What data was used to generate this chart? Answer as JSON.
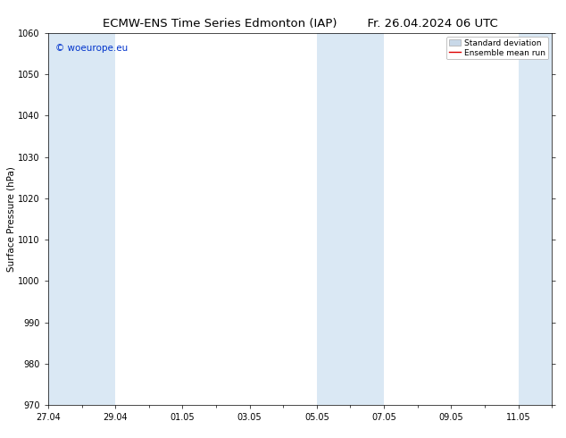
{
  "title_left": "ECMW-ENS Time Series Edmonton (IAP)",
  "title_right": "Fr. 26.04.2024 06 UTC",
  "ylabel": "Surface Pressure (hPa)",
  "ylim": [
    970,
    1060
  ],
  "yticks": [
    970,
    980,
    990,
    1000,
    1010,
    1020,
    1030,
    1040,
    1050,
    1060
  ],
  "xlim": [
    0,
    15
  ],
  "xtick_labels": [
    "27.04",
    "29.04",
    "01.05",
    "03.05",
    "05.05",
    "07.05",
    "09.05",
    "11.05"
  ],
  "xtick_positions": [
    0,
    2,
    4,
    6,
    8,
    10,
    12,
    14
  ],
  "shade_bands": [
    {
      "start": 0.0,
      "end": 1.0
    },
    {
      "start": 1.0,
      "end": 2.0
    },
    {
      "start": 8.0,
      "end": 9.0
    },
    {
      "start": 9.0,
      "end": 10.0
    },
    {
      "start": 14.0,
      "end": 15.0
    }
  ],
  "shade_color": "#dae8f4",
  "watermark": "© woeurope.eu",
  "watermark_color": "#0033cc",
  "legend_std_label": "Standard deviation",
  "legend_mean_label": "Ensemble mean run",
  "legend_std_color": "#c8d8e8",
  "legend_mean_color": "#dd0000",
  "bg_color": "#ffffff",
  "plot_bg_color": "#ffffff",
  "title_fontsize": 9.5,
  "ylabel_fontsize": 7.5,
  "tick_fontsize": 7,
  "watermark_fontsize": 7.5,
  "legend_fontsize": 6.5
}
